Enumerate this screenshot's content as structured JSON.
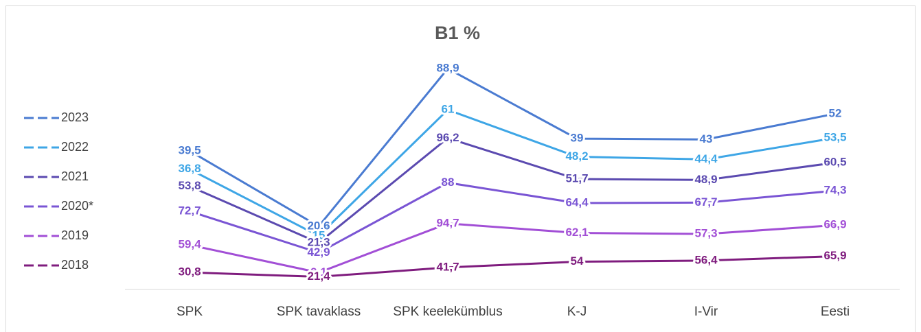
{
  "chart_data": {
    "type": "line",
    "stacked": true,
    "title": "B1 %",
    "categories": [
      "SPK",
      "SPK tavaklass",
      "SPK keelekümblus",
      "K-J",
      "I-Vir",
      "Eesti"
    ],
    "series": [
      {
        "name": "2023",
        "color": "#4a7bd1",
        "values": [
          39.5,
          20.6,
          88.9,
          39,
          43,
          52
        ],
        "value_labels": [
          "39,5",
          "20,6",
          "88,9",
          "39",
          "43",
          "52"
        ]
      },
      {
        "name": "2022",
        "color": "#3ea6e6",
        "values": [
          36.8,
          15,
          61,
          48.2,
          44.4,
          53.5
        ],
        "value_labels": [
          "36,8",
          "15",
          "61",
          "48,2",
          "44,4",
          "53,5"
        ]
      },
      {
        "name": "2021",
        "color": "#5b4ab0",
        "values": [
          53.8,
          21.3,
          96.2,
          51.7,
          48.9,
          60.5
        ],
        "value_labels": [
          "53,8",
          "21,3",
          "96,2",
          "51,7",
          "48,9",
          "60,5"
        ]
      },
      {
        "name": "2020*",
        "color": "#7a55d4",
        "values": [
          72.7,
          42.9,
          88,
          64.4,
          67.7,
          74.3
        ],
        "value_labels": [
          "72,7",
          "42,9",
          "88",
          "64,4",
          "67,7",
          "74,3"
        ]
      },
      {
        "name": "2019",
        "color": "#a24fd6",
        "values": [
          59.4,
          9.1,
          94.7,
          62.1,
          57.3,
          66.9
        ],
        "value_labels": [
          "59,4",
          "9,1",
          "94,7",
          "62,1",
          "57,3",
          "66,9"
        ]
      },
      {
        "name": "2018",
        "color": "#7f1c7e",
        "values": [
          30.8,
          21.4,
          41.7,
          54,
          56.4,
          65.9
        ],
        "value_labels": [
          "30,8",
          "21,4",
          "41,7",
          "54",
          "56,4",
          "65,9"
        ]
      }
    ],
    "legend": "left"
  }
}
